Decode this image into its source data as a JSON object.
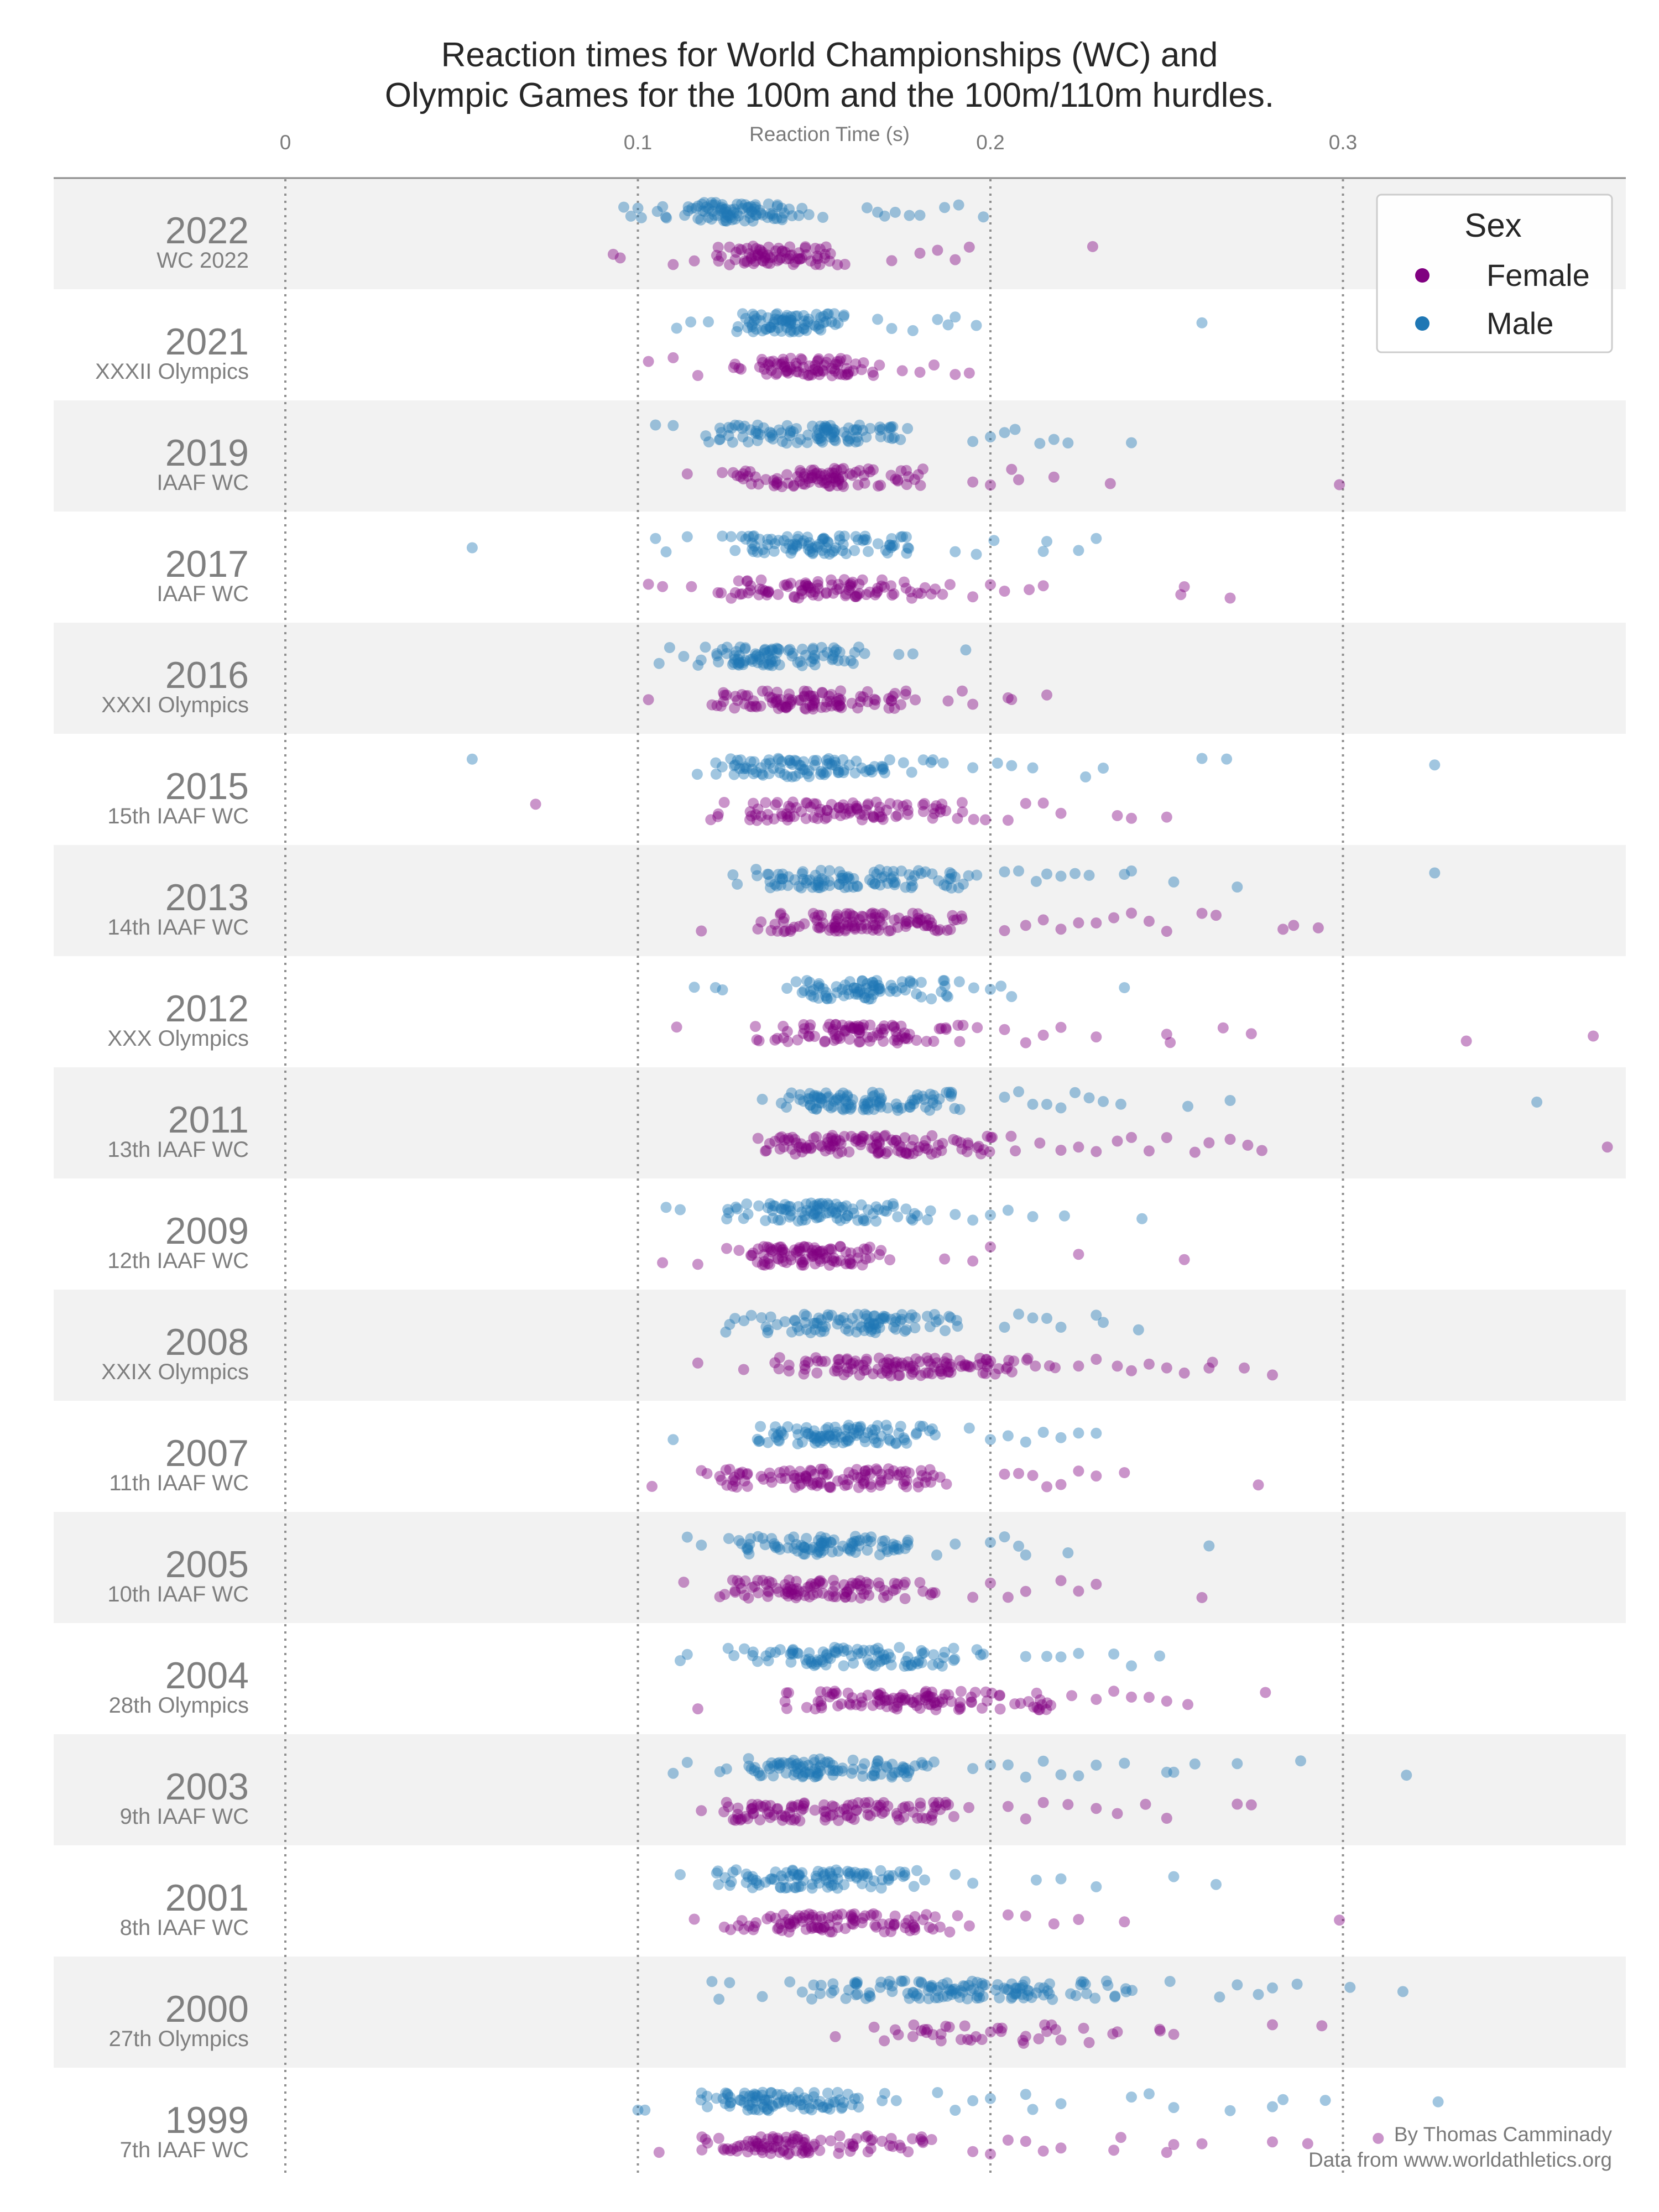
{
  "chart_data": {
    "type": "scatter",
    "title_line1": "Reaction times for World Championships (WC) and",
    "title_line2": "Olympic Games for the 100m and the 100m/110m hurdles.",
    "xlabel": "Reaction Time (s)",
    "xlim": [
      0,
      0.38
    ],
    "x_ticks": [
      "0",
      "0.1",
      "0.2",
      "0.3"
    ],
    "grid_x_values": [
      0,
      0.1,
      0.2,
      0.3
    ],
    "legend": {
      "title": "Sex",
      "position": "top-right",
      "entries": [
        {
          "label": "Female",
          "color": "#800080"
        },
        {
          "label": "Male",
          "color": "#1f77b4"
        }
      ]
    },
    "colors": {
      "female": "#800080",
      "male": "#1f77b4",
      "band": "#f2f2f2"
    },
    "credit_line1": "By Thomas Camminady",
    "credit_line2": "Data from www.worldathletics.org",
    "rows": [
      {
        "year": "2022",
        "event": "WC 2022",
        "male": {
          "n": 90,
          "core": [
            0.103,
            0.155
          ],
          "peak": 0.125,
          "out": [
            0.096,
            0.098,
            0.1,
            0.101,
            0.165,
            0.168,
            0.17,
            0.173,
            0.177,
            0.18,
            0.187,
            0.191,
            0.198
          ]
        },
        "female": {
          "n": 75,
          "core": [
            0.118,
            0.162
          ],
          "peak": 0.135,
          "out": [
            0.093,
            0.095,
            0.11,
            0.116,
            0.172,
            0.18,
            0.185,
            0.19,
            0.194,
            0.229
          ]
        }
      },
      {
        "year": "2021",
        "event": "XXXII Olympics",
        "male": {
          "n": 80,
          "core": [
            0.125,
            0.164
          ],
          "peak": 0.143,
          "out": [
            0.111,
            0.115,
            0.12,
            0.168,
            0.172,
            0.178,
            0.185,
            0.188,
            0.19,
            0.196,
            0.26
          ]
        },
        "female": {
          "n": 80,
          "core": [
            0.124,
            0.17
          ],
          "peak": 0.147,
          "out": [
            0.103,
            0.11,
            0.117,
            0.175,
            0.18,
            0.184,
            0.19,
            0.194
          ]
        }
      },
      {
        "year": "2019",
        "event": "IAAF WC",
        "male": {
          "n": 100,
          "core": [
            0.118,
            0.19
          ],
          "peak": 0.15,
          "out": [
            0.105,
            0.11,
            0.195,
            0.2,
            0.204,
            0.207,
            0.214,
            0.218,
            0.222,
            0.24
          ]
        },
        "female": {
          "n": 95,
          "core": [
            0.12,
            0.19
          ],
          "peak": 0.146,
          "out": [
            0.114,
            0.195,
            0.2,
            0.206,
            0.208,
            0.218,
            0.234,
            0.299
          ]
        }
      },
      {
        "year": "2017",
        "event": "IAAF WC",
        "male": {
          "n": 90,
          "core": [
            0.12,
            0.186
          ],
          "peak": 0.15,
          "out": [
            0.053,
            0.105,
            0.108,
            0.114,
            0.19,
            0.196,
            0.201,
            0.215,
            0.216,
            0.225,
            0.23
          ]
        },
        "female": {
          "n": 95,
          "core": [
            0.113,
            0.19
          ],
          "peak": 0.152,
          "out": [
            0.103,
            0.107,
            0.195,
            0.2,
            0.204,
            0.211,
            0.215,
            0.254,
            0.255,
            0.268
          ]
        }
      },
      {
        "year": "2016",
        "event": "XXXI Olympics",
        "male": {
          "n": 90,
          "core": [
            0.115,
            0.17
          ],
          "peak": 0.14,
          "out": [
            0.106,
            0.109,
            0.113,
            0.174,
            0.178,
            0.193
          ]
        },
        "female": {
          "n": 100,
          "core": [
            0.115,
            0.185
          ],
          "peak": 0.145,
          "out": [
            0.103,
            0.188,
            0.192,
            0.195,
            0.205,
            0.206,
            0.216
          ]
        }
      },
      {
        "year": "2015",
        "event": "15th IAAF WC",
        "male": {
          "n": 95,
          "core": [
            0.115,
            0.19
          ],
          "peak": 0.14,
          "out": [
            0.053,
            0.195,
            0.202,
            0.206,
            0.212,
            0.227,
            0.232,
            0.26,
            0.267,
            0.326
          ]
        },
        "female": {
          "n": 100,
          "core": [
            0.12,
            0.2
          ],
          "peak": 0.15,
          "out": [
            0.071,
            0.205,
            0.21,
            0.215,
            0.22,
            0.236,
            0.24,
            0.25
          ]
        }
      },
      {
        "year": "2013",
        "event": "14th IAAF WC",
        "male": {
          "n": 100,
          "core": [
            0.124,
            0.2
          ],
          "peak": 0.152,
          "out": [
            0.204,
            0.208,
            0.213,
            0.216,
            0.22,
            0.224,
            0.228,
            0.238,
            0.24,
            0.252,
            0.27,
            0.326
          ]
        },
        "female": {
          "n": 110,
          "core": [
            0.125,
            0.2
          ],
          "peak": 0.16,
          "out": [
            0.118,
            0.204,
            0.21,
            0.215,
            0.22,
            0.225,
            0.23,
            0.235,
            0.24,
            0.245,
            0.25,
            0.26,
            0.264,
            0.283,
            0.286,
            0.293
          ]
        }
      },
      {
        "year": "2012",
        "event": "XXX Olympics",
        "male": {
          "n": 80,
          "core": [
            0.134,
            0.196
          ],
          "peak": 0.158,
          "out": [
            0.116,
            0.122,
            0.124,
            0.2,
            0.203,
            0.206,
            0.238
          ]
        },
        "female": {
          "n": 90,
          "core": [
            0.128,
            0.2
          ],
          "peak": 0.16,
          "out": [
            0.111,
            0.204,
            0.21,
            0.215,
            0.22,
            0.23,
            0.25,
            0.251,
            0.266,
            0.274,
            0.335,
            0.371
          ]
        }
      },
      {
        "year": "2011",
        "event": "13th IAAF WC",
        "male": {
          "n": 100,
          "core": [
            0.132,
            0.2
          ],
          "peak": 0.164,
          "out": [
            0.204,
            0.208,
            0.212,
            0.216,
            0.22,
            0.224,
            0.228,
            0.232,
            0.237,
            0.256,
            0.268,
            0.355
          ]
        },
        "female": {
          "n": 120,
          "core": [
            0.124,
            0.21
          ],
          "peak": 0.162,
          "out": [
            0.214,
            0.22,
            0.225,
            0.23,
            0.236,
            0.24,
            0.245,
            0.25,
            0.258,
            0.262,
            0.268,
            0.273,
            0.277,
            0.375
          ]
        }
      },
      {
        "year": "2009",
        "event": "12th IAAF WC",
        "male": {
          "n": 95,
          "core": [
            0.118,
            0.186
          ],
          "peak": 0.148,
          "out": [
            0.108,
            0.112,
            0.19,
            0.195,
            0.2,
            0.205,
            0.212,
            0.221,
            0.243
          ]
        },
        "female": {
          "n": 95,
          "core": [
            0.124,
            0.178
          ],
          "peak": 0.148,
          "out": [
            0.107,
            0.117,
            0.187,
            0.195,
            0.2,
            0.225,
            0.255
          ]
        }
      },
      {
        "year": "2008",
        "event": "XXIX Olympics",
        "male": {
          "n": 95,
          "core": [
            0.122,
            0.2
          ],
          "peak": 0.16,
          "out": [
            0.204,
            0.208,
            0.212,
            0.216,
            0.22,
            0.23,
            0.232,
            0.242
          ]
        },
        "female": {
          "n": 120,
          "core": [
            0.135,
            0.22
          ],
          "peak": 0.175,
          "out": [
            0.117,
            0.13,
            0.225,
            0.23,
            0.236,
            0.24,
            0.245,
            0.25,
            0.255,
            0.262,
            0.263,
            0.272,
            0.28
          ]
        }
      },
      {
        "year": "2007",
        "event": "11th IAAF WC",
        "male": {
          "n": 95,
          "core": [
            0.126,
            0.19
          ],
          "peak": 0.158,
          "out": [
            0.11,
            0.194,
            0.2,
            0.205,
            0.21,
            0.215,
            0.22,
            0.225,
            0.23
          ]
        },
        "female": {
          "n": 110,
          "core": [
            0.115,
            0.2
          ],
          "peak": 0.15,
          "out": [
            0.104,
            0.204,
            0.208,
            0.212,
            0.216,
            0.22,
            0.225,
            0.23,
            0.238,
            0.276
          ]
        }
      },
      {
        "year": "2005",
        "event": "10th IAAF WC",
        "male": {
          "n": 90,
          "core": [
            0.122,
            0.186
          ],
          "peak": 0.147,
          "out": [
            0.114,
            0.118,
            0.19,
            0.2,
            0.204,
            0.208,
            0.21,
            0.222,
            0.262
          ]
        },
        "female": {
          "n": 100,
          "core": [
            0.12,
            0.19
          ],
          "peak": 0.148,
          "out": [
            0.113,
            0.195,
            0.2,
            0.205,
            0.21,
            0.22,
            0.225,
            0.23,
            0.26
          ]
        }
      },
      {
        "year": "2004",
        "event": "28th Olympics",
        "male": {
          "n": 95,
          "core": [
            0.122,
            0.205
          ],
          "peak": 0.157,
          "out": [
            0.112,
            0.114,
            0.21,
            0.216,
            0.22,
            0.225,
            0.235,
            0.24,
            0.248
          ]
        },
        "female": {
          "n": 110,
          "core": [
            0.138,
            0.226
          ],
          "peak": 0.182,
          "out": [
            0.117,
            0.23,
            0.235,
            0.24,
            0.245,
            0.25,
            0.256,
            0.278
          ]
        }
      },
      {
        "year": "2003",
        "event": "9th IAAF WC",
        "male": {
          "n": 100,
          "core": [
            0.12,
            0.19
          ],
          "peak": 0.15,
          "out": [
            0.11,
            0.114,
            0.195,
            0.2,
            0.205,
            0.21,
            0.215,
            0.22,
            0.225,
            0.23,
            0.238,
            0.25,
            0.252,
            0.258,
            0.27,
            0.288,
            0.318
          ]
        },
        "female": {
          "n": 110,
          "core": [
            0.12,
            0.2
          ],
          "peak": 0.15,
          "out": [
            0.118,
            0.205,
            0.21,
            0.215,
            0.222,
            0.23,
            0.236,
            0.244,
            0.25,
            0.27,
            0.274
          ]
        }
      },
      {
        "year": "2001",
        "event": "8th IAAF WC",
        "male": {
          "n": 95,
          "core": [
            0.115,
            0.185
          ],
          "peak": 0.145,
          "out": [
            0.112,
            0.19,
            0.195,
            0.213,
            0.22,
            0.23,
            0.252,
            0.264
          ]
        },
        "female": {
          "n": 100,
          "core": [
            0.118,
            0.2
          ],
          "peak": 0.148,
          "out": [
            0.116,
            0.205,
            0.21,
            0.218,
            0.225,
            0.238,
            0.299
          ]
        }
      },
      {
        "year": "2000",
        "event": "27th Olympics",
        "male": {
          "n": 130,
          "core": [
            0.134,
            0.26
          ],
          "peak": 0.2,
          "out": [
            0.121,
            0.123,
            0.126,
            0.265,
            0.27,
            0.276,
            0.28,
            0.287,
            0.302,
            0.317
          ]
        },
        "female": {
          "n": 30,
          "core": [
            0.155,
            0.26
          ],
          "peak": 0.2,
          "out": [
            0.156,
            0.167,
            0.173,
            0.178,
            0.186,
            0.21,
            0.216,
            0.22,
            0.228,
            0.236,
            0.248,
            0.252,
            0.28,
            0.294
          ]
        }
      },
      {
        "year": "1999",
        "event": "7th IAAF WC",
        "male": {
          "n": 95,
          "core": [
            0.11,
            0.18
          ],
          "peak": 0.135,
          "out": [
            0.1,
            0.102,
            0.185,
            0.19,
            0.195,
            0.2,
            0.21,
            0.212,
            0.22,
            0.24,
            0.245,
            0.252,
            0.268,
            0.28,
            0.283,
            0.295,
            0.327
          ]
        },
        "female": {
          "n": 100,
          "core": [
            0.112,
            0.19
          ],
          "peak": 0.14,
          "out": [
            0.106,
            0.195,
            0.2,
            0.205,
            0.21,
            0.215,
            0.22,
            0.235,
            0.237,
            0.25,
            0.252,
            0.26,
            0.28,
            0.29,
            0.31
          ]
        }
      }
    ]
  }
}
